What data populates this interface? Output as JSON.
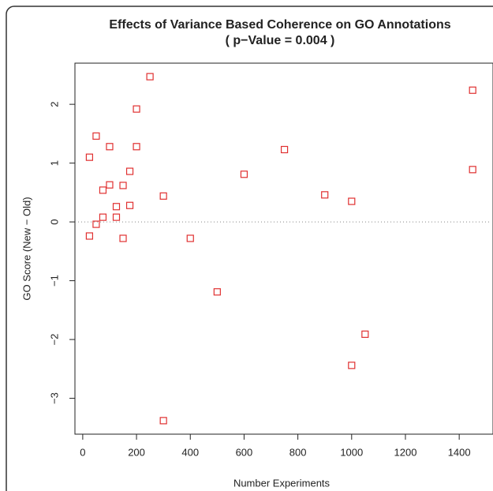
{
  "chart_data": {
    "type": "scatter",
    "title": "Effects of Variance Based Coherence on GO Annotations",
    "subtitle": "( p−Value =  0.004 )",
    "x_label": "Number Experiments",
    "y_label": "GO Score (New − Old)",
    "xlim": [
      -29,
      1511
    ],
    "ylim": [
      -3.61,
      2.7
    ],
    "xticks": [
      0,
      200,
      400,
      600,
      800,
      1000,
      1200,
      1400
    ],
    "yticks": [
      {
        "value": -3,
        "label": "−3"
      },
      {
        "value": -2,
        "label": "−2"
      },
      {
        "value": -1,
        "label": "−1"
      },
      0,
      1,
      2
    ],
    "reference_line_y": 0,
    "series": [
      {
        "color": "#e03030",
        "x": [
          25,
          50,
          25,
          50,
          75,
          75,
          100,
          100,
          125,
          125,
          150,
          150,
          175,
          175,
          200,
          200,
          250,
          300,
          300,
          400,
          500,
          600,
          750,
          900,
          1000,
          1000,
          1050,
          1450,
          1450
        ],
        "values": [
          1.1,
          1.46,
          -0.24,
          -0.04,
          0.54,
          0.08,
          1.28,
          0.63,
          0.26,
          0.08,
          0.62,
          -0.28,
          0.86,
          0.28,
          1.92,
          1.28,
          2.47,
          0.44,
          -3.38,
          -0.28,
          -1.19,
          0.81,
          1.23,
          0.46,
          0.35,
          -2.44,
          -1.91,
          2.24,
          0.89
        ]
      }
    ]
  }
}
